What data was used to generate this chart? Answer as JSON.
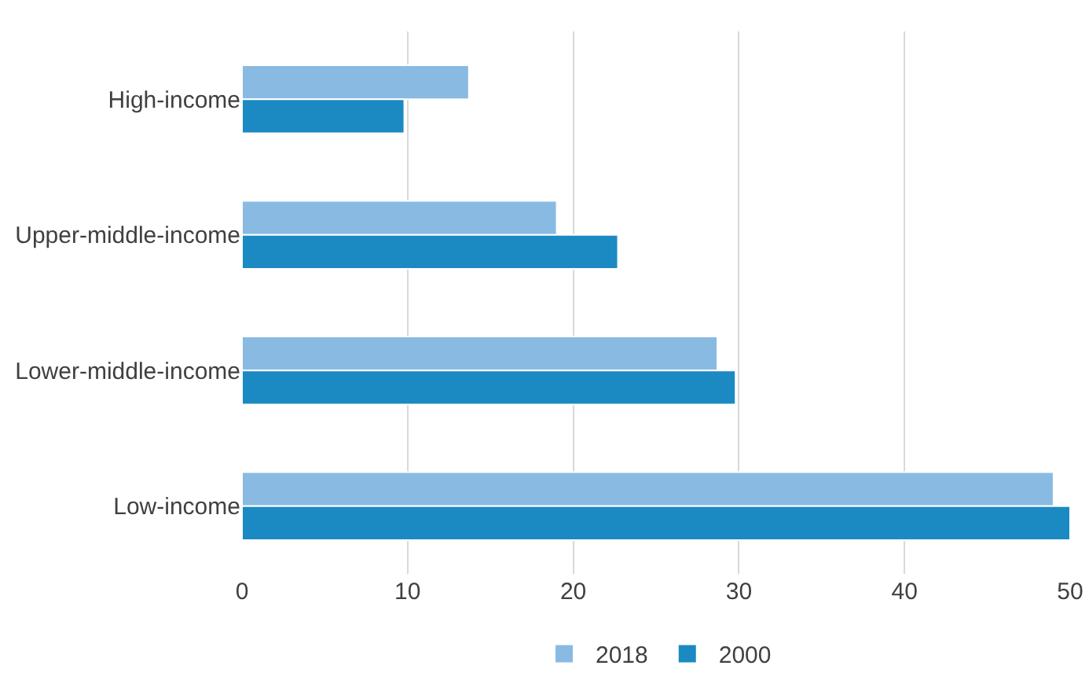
{
  "chart_data": {
    "type": "bar",
    "orientation": "horizontal",
    "categories": [
      "High-income",
      "Upper-middle-income",
      "Lower-middle-income",
      "Low-income"
    ],
    "series": [
      {
        "name": "2018",
        "color": "#89bae2",
        "values": [
          13.7,
          19.0,
          28.7,
          49.0
        ]
      },
      {
        "name": "2000",
        "color": "#1b8ac2",
        "values": [
          9.8,
          22.7,
          29.8,
          50.0
        ]
      }
    ],
    "xlim": [
      0,
      50
    ],
    "xticks": [
      0,
      10,
      20,
      30,
      40,
      50
    ],
    "grid": "x",
    "legend": "bottom"
  }
}
